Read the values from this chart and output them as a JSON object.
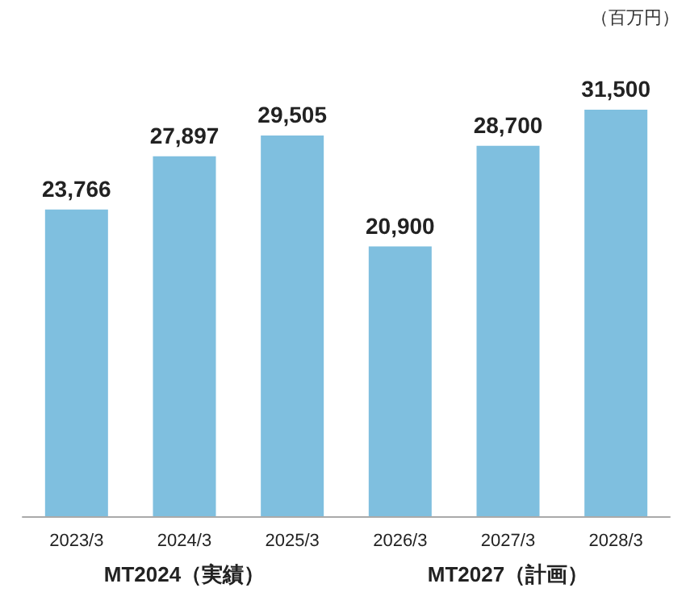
{
  "chart_data": {
    "type": "bar",
    "categories": [
      "2023/3",
      "2024/3",
      "2025/3",
      "2026/3",
      "2027/3",
      "2028/3"
    ],
    "values": [
      23766,
      27897,
      29505,
      20900,
      28700,
      31500
    ],
    "value_labels": [
      "23,766",
      "27,897",
      "29,505",
      "20,900",
      "28,700",
      "31,500"
    ],
    "color": "#7fbfdf",
    "annotations": [
      "MT2024（実績）",
      "MT2027（計画）",
      "（百万円）"
    ]
  }
}
